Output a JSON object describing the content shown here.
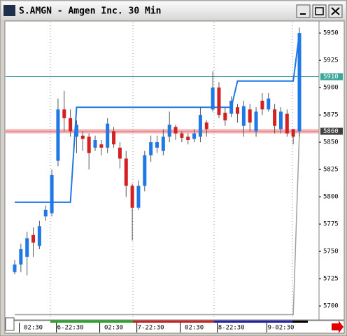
{
  "chart_data": {
    "type": "candlestick",
    "title": "S.AMGN - Amgen Inc. 30 Min",
    "categories": [
      null,
      null,
      null,
      "02:30",
      null,
      null,
      null,
      null,
      null,
      "6-22:30",
      null,
      null,
      null,
      null,
      null,
      null,
      "02:30",
      null,
      null,
      null,
      null,
      null,
      "7-22:30",
      null,
      null,
      null,
      null,
      null,
      null,
      "02:30",
      null,
      null,
      null,
      null,
      null,
      "8-22:30",
      null,
      null,
      null,
      null,
      null,
      null,
      null,
      "9-02:30",
      null,
      null,
      null
    ],
    "open": [
      5731,
      5738,
      5745,
      5765,
      5755,
      5782,
      5785,
      5833,
      5880,
      5872,
      5855,
      5856,
      5855,
      5845,
      5848,
      5845,
      5860,
      5845,
      5835,
      5810,
      5790,
      5810,
      5838,
      5845,
      5842,
      5855,
      5864,
      5858,
      5855,
      5853,
      5855,
      5868,
      5880,
      5900,
      5877,
      5876,
      5882,
      5865,
      5880,
      5860,
      5888,
      5880,
      5880,
      5862,
      5876,
      5862,
      5860
    ],
    "high": [
      5742,
      5757,
      5768,
      5772,
      5778,
      5792,
      5825,
      5890,
      5897,
      5880,
      5870,
      5860,
      5858,
      5856,
      5852,
      5872,
      5864,
      5850,
      5842,
      5812,
      5815,
      5842,
      5856,
      5856,
      5862,
      5878,
      5866,
      5860,
      5858,
      5862,
      5882,
      5870,
      5915,
      5905,
      5882,
      5892,
      5885,
      5888,
      5885,
      5882,
      5895,
      5895,
      5885,
      5882,
      5880,
      5862,
      5955
    ],
    "low": [
      5729,
      5731,
      5728,
      5745,
      5752,
      5778,
      5782,
      5828,
      5860,
      5855,
      5840,
      5842,
      5825,
      5842,
      5838,
      5840,
      5845,
      5826,
      5800,
      5760,
      5788,
      5805,
      5832,
      5840,
      5838,
      5850,
      5852,
      5850,
      5848,
      5850,
      5850,
      5855,
      5878,
      5872,
      5865,
      5873,
      5868,
      5855,
      5860,
      5855,
      5875,
      5878,
      5858,
      5858,
      5855,
      5848,
      5855
    ],
    "close": [
      5738,
      5752,
      5762,
      5758,
      5773,
      5788,
      5820,
      5880,
      5872,
      5860,
      5866,
      5853,
      5840,
      5852,
      5845,
      5867,
      5848,
      5835,
      5810,
      5790,
      5810,
      5838,
      5850,
      5850,
      5855,
      5866,
      5858,
      5854,
      5852,
      5858,
      5875,
      5862,
      5900,
      5875,
      5870,
      5888,
      5876,
      5883,
      5868,
      5878,
      5880,
      5890,
      5865,
      5878,
      5858,
      5855,
      5950
    ],
    "up_color": "#1e78e6",
    "down_color": "#d42020",
    "overlays": [
      {
        "color": "#1e78e6",
        "values": [
          5795,
          5795,
          5795,
          5795,
          5795,
          5795,
          5795,
          5795,
          5795,
          5795,
          5882,
          5882,
          5882,
          5882,
          5882,
          5882,
          5882,
          5882,
          5882,
          5882,
          5882,
          5882,
          5882,
          5882,
          5882,
          5882,
          5882,
          5882,
          5882,
          5882,
          5882,
          5882,
          5882,
          5882,
          5882,
          5882,
          5906,
          5906,
          5906,
          5906,
          5906,
          5906,
          5906,
          5906,
          5906,
          5906,
          5950
        ]
      },
      {
        "color": "#a0a0a0",
        "values": [
          5692,
          5692,
          5692,
          5692,
          5692,
          5692,
          5692,
          5692,
          5692,
          5692,
          5692,
          5692,
          5692,
          5692,
          5692,
          5692,
          5692,
          5692,
          5692,
          5692,
          5692,
          5692,
          5692,
          5692,
          5692,
          5692,
          5692,
          5692,
          5692,
          5692,
          5692,
          5692,
          5692,
          5692,
          5692,
          5692,
          5692,
          5692,
          5692,
          5692,
          5692,
          5692,
          5692,
          5692,
          5692,
          5692,
          5860
        ]
      }
    ],
    "reference_lines": [
      {
        "value": 5910,
        "color": "#1f8f8f",
        "box": "#3aa79a"
      },
      {
        "value": 5860,
        "color": "#e88080",
        "box": "#404040"
      }
    ],
    "ylim": [
      5688.5,
      5961
    ],
    "yticks": [
      5700,
      5725,
      5750,
      5775,
      5800,
      5825,
      5850,
      5875,
      5900,
      5925,
      5950
    ]
  }
}
